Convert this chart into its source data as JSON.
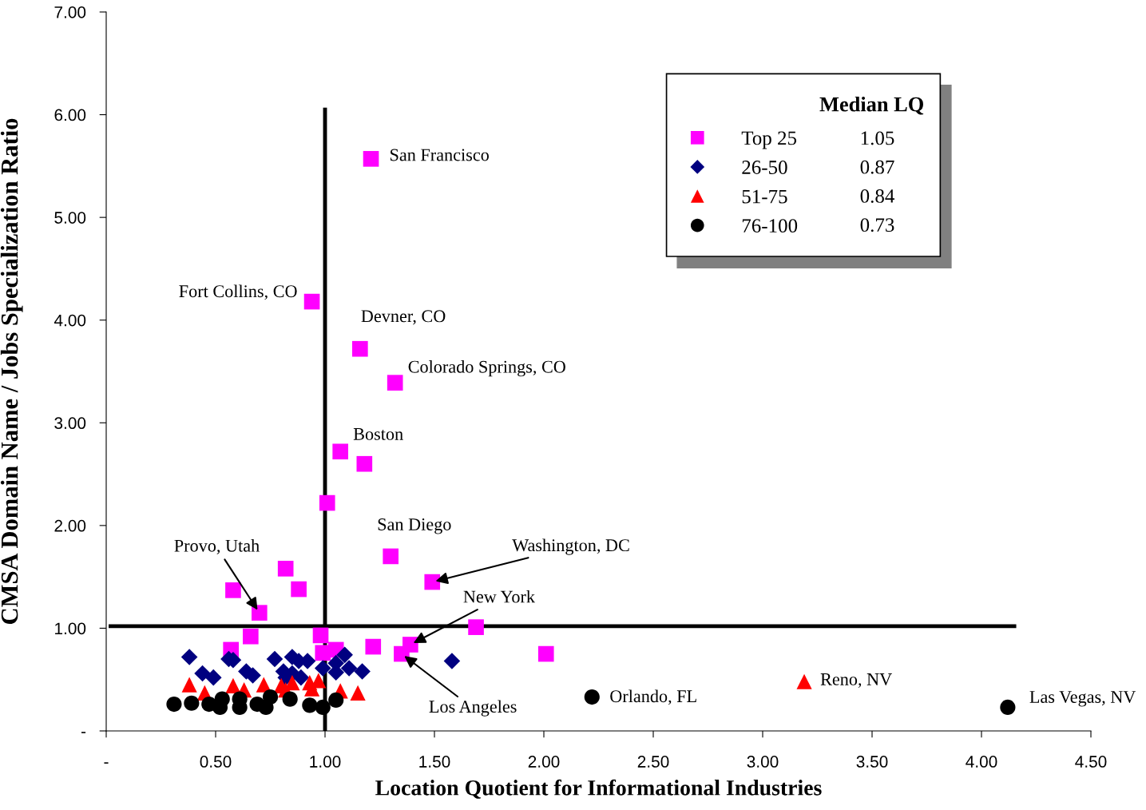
{
  "chart_data": {
    "type": "scatter",
    "xlabel": "Location Quotient for Informational Industries",
    "ylabel": "CMSA Domain Name / Jobs Specialization Ratio",
    "xlim": [
      0,
      4.5
    ],
    "ylim": [
      0,
      7
    ],
    "xticks": [
      {
        "value": 0,
        "label": "-"
      },
      {
        "value": 0.5,
        "label": "0.50"
      },
      {
        "value": 1,
        "label": "1.00"
      },
      {
        "value": 1.5,
        "label": "1.50"
      },
      {
        "value": 2,
        "label": "2.00"
      },
      {
        "value": 2.5,
        "label": "2.50"
      },
      {
        "value": 3,
        "label": "3.00"
      },
      {
        "value": 3.5,
        "label": "3.50"
      },
      {
        "value": 4,
        "label": "4.00"
      },
      {
        "value": 4.5,
        "label": "4.50"
      }
    ],
    "yticks": [
      {
        "value": 0,
        "label": "-"
      },
      {
        "value": 1,
        "label": "1.00"
      },
      {
        "value": 2,
        "label": "2.00"
      },
      {
        "value": 3,
        "label": "3.00"
      },
      {
        "value": 4,
        "label": "4.00"
      },
      {
        "value": 5,
        "label": "5.00"
      },
      {
        "value": 6,
        "label": "6.00"
      },
      {
        "value": 7,
        "label": "7.00"
      }
    ],
    "grid": false,
    "legend": "top right",
    "legend_title": "Median LQ",
    "series": [
      {
        "name": "Top 25",
        "color": "#ff00ff",
        "marker": "square",
        "x": [
          1.21,
          0.94,
          1.16,
          1.32,
          1.07,
          1.18,
          1.01,
          1.3,
          1.49,
          0.82,
          0.58,
          0.88,
          0.7,
          0.66,
          0.57,
          0.98,
          1.69,
          2.01,
          0.99,
          1.05,
          1.22,
          1.39,
          1.35
        ],
        "values": [
          5.57,
          4.18,
          3.72,
          3.39,
          2.72,
          2.6,
          2.22,
          1.7,
          1.45,
          1.58,
          1.37,
          1.38,
          1.15,
          0.92,
          0.79,
          0.93,
          1.01,
          0.75,
          0.76,
          0.79,
          0.82,
          0.84,
          0.75
        ]
      },
      {
        "name": "26-50",
        "color": "#000080",
        "marker": "diamond",
        "x": [
          0.38,
          0.56,
          0.58,
          0.44,
          0.49,
          0.64,
          0.67,
          0.77,
          0.81,
          0.85,
          0.88,
          0.92,
          0.82,
          0.85,
          0.89,
          0.99,
          1.05,
          1.09,
          1.05,
          1.11,
          1.17,
          1.58
        ],
        "values": [
          0.72,
          0.7,
          0.69,
          0.56,
          0.52,
          0.58,
          0.54,
          0.7,
          0.58,
          0.72,
          0.68,
          0.68,
          0.52,
          0.56,
          0.52,
          0.61,
          0.66,
          0.74,
          0.57,
          0.61,
          0.58,
          0.68
        ]
      },
      {
        "name": "51-75",
        "color": "#ff0000",
        "marker": "triangle",
        "x": [
          0.38,
          0.45,
          0.58,
          0.63,
          0.72,
          0.8,
          0.85,
          0.82,
          0.93,
          0.97,
          0.94,
          1.07,
          1.15,
          3.19
        ],
        "values": [
          0.45,
          0.37,
          0.44,
          0.4,
          0.45,
          0.44,
          0.47,
          0.4,
          0.47,
          0.49,
          0.41,
          0.39,
          0.37,
          0.48
        ]
      },
      {
        "name": "76-100",
        "color": "#000000",
        "marker": "circle",
        "x": [
          0.31,
          0.39,
          0.47,
          0.53,
          0.52,
          0.61,
          0.61,
          0.69,
          0.75,
          0.73,
          0.84,
          0.93,
          0.99,
          1.05,
          2.22,
          4.12
        ],
        "values": [
          0.26,
          0.27,
          0.26,
          0.31,
          0.23,
          0.31,
          0.23,
          0.26,
          0.33,
          0.23,
          0.31,
          0.25,
          0.23,
          0.3,
          0.33,
          0.23
        ]
      }
    ],
    "ref_lines": [
      {
        "axis": "x",
        "value": 1.0,
        "color": "#000000",
        "line_style": "solid"
      },
      {
        "axis": "y",
        "value": 1.02,
        "color": "#000000",
        "line_style": "solid"
      }
    ],
    "annotations": [
      "1.05",
      "0.87",
      "0.84",
      "0.73",
      {
        "text": "San Francisco",
        "x": 1.21,
        "y": 5.57
      },
      {
        "text": "Fort Collins, CO",
        "x": 0.94,
        "y": 4.18
      },
      {
        "text": "Devner, CO",
        "x": 1.16,
        "y": 3.72
      },
      {
        "text": "Colorado Springs, CO",
        "x": 1.32,
        "y": 3.39
      },
      {
        "text": "Boston",
        "x": 1.07,
        "y": 2.72
      },
      {
        "text": "San Diego",
        "x": 1.3,
        "y": 1.7
      },
      {
        "text": "Provo, Utah",
        "x": 0.7,
        "y": 1.15
      },
      {
        "text": "Washington, DC",
        "x": 1.49,
        "y": 1.45
      },
      {
        "text": "New York",
        "x": 1.39,
        "y": 0.84
      },
      {
        "text": "Los Angeles",
        "x": 1.35,
        "y": 0.75
      },
      {
        "text": "Reno, NV",
        "x": 3.19,
        "y": 0.48
      },
      {
        "text": "Orlando, FL",
        "x": 2.22,
        "y": 0.33
      },
      {
        "text": "Las Vegas, NV",
        "x": 4.12,
        "y": 0.23
      }
    ]
  }
}
